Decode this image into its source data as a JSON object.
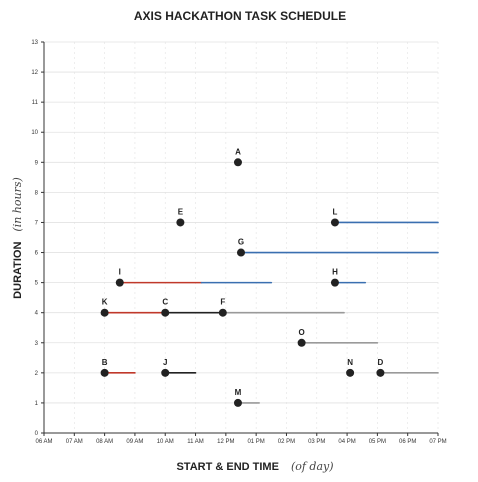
{
  "chart_data": {
    "type": "scatter",
    "title": "AXIS HACKATHON TASK SCHEDULE",
    "xlabel": "START & END TIME",
    "xlabel_note": "(of day)",
    "ylabel": "DURATION",
    "ylabel_note": "(in hours)",
    "x_ticks": [
      "06 AM",
      "07 AM",
      "08 AM",
      "09 AM",
      "10 AM",
      "11 AM",
      "12 PM",
      "01 PM",
      "02 PM",
      "03 PM",
      "04 PM",
      "05 PM",
      "06 PM",
      "07 PM"
    ],
    "y_ticks": [
      "0",
      "1",
      "2",
      "3",
      "4",
      "5",
      "6",
      "7",
      "8",
      "9",
      "10",
      "11",
      "12",
      "13"
    ],
    "xlim": [
      6,
      19
    ],
    "ylim": [
      0,
      13
    ],
    "grid": true,
    "colors": {
      "point": "#222222",
      "red_line": "#c0392b",
      "blue_line": "#3a6fb0",
      "black_line": "#222222",
      "gray_line": "#9a9a9a",
      "grid": "#e2e2e2"
    },
    "points": [
      {
        "label": "A",
        "x": 12.4,
        "y": 9
      },
      {
        "label": "B",
        "x": 8.0,
        "y": 2
      },
      {
        "label": "C",
        "x": 10.0,
        "y": 4
      },
      {
        "label": "D",
        "x": 17.1,
        "y": 2
      },
      {
        "label": "E",
        "x": 10.5,
        "y": 7
      },
      {
        "label": "F",
        "x": 11.9,
        "y": 4
      },
      {
        "label": "G",
        "x": 12.5,
        "y": 6
      },
      {
        "label": "H",
        "x": 15.6,
        "y": 5
      },
      {
        "label": "I",
        "x": 8.5,
        "y": 5
      },
      {
        "label": "J",
        "x": 10.0,
        "y": 2
      },
      {
        "label": "K",
        "x": 8.0,
        "y": 4
      },
      {
        "label": "L",
        "x": 15.6,
        "y": 7
      },
      {
        "label": "M",
        "x": 12.4,
        "y": 1
      },
      {
        "label": "N",
        "x": 16.1,
        "y": 2
      },
      {
        "label": "O",
        "x": 14.5,
        "y": 3
      }
    ],
    "lines": [
      {
        "from": "B",
        "x1": 8.0,
        "x2": 9.0,
        "y": 2,
        "color": "red_line"
      },
      {
        "from": "J",
        "x1": 10.0,
        "x2": 11.0,
        "y": 2,
        "color": "black_line"
      },
      {
        "from": "K",
        "x1": 8.0,
        "x2": 10.0,
        "y": 4,
        "color": "red_line"
      },
      {
        "from": "C",
        "x1": 10.0,
        "x2": 12.0,
        "y": 4,
        "color": "black_line"
      },
      {
        "from": "F",
        "x1": 11.9,
        "x2": 15.9,
        "y": 4,
        "color": "gray_line"
      },
      {
        "from": "I",
        "x1": 8.5,
        "x2": 11.2,
        "y": 5,
        "color": "red_line"
      },
      {
        "from": "I",
        "x1": 11.2,
        "x2": 13.5,
        "y": 5,
        "color": "blue_line"
      },
      {
        "from": "H",
        "x1": 15.6,
        "x2": 16.6,
        "y": 5,
        "color": "blue_line"
      },
      {
        "from": "G",
        "x1": 12.5,
        "x2": 19.0,
        "y": 6,
        "color": "blue_line"
      },
      {
        "from": "L",
        "x1": 15.6,
        "x2": 19.0,
        "y": 7,
        "color": "blue_line"
      },
      {
        "from": "O",
        "x1": 14.5,
        "x2": 17.0,
        "y": 3,
        "color": "gray_line"
      },
      {
        "from": "M",
        "x1": 12.4,
        "x2": 13.1,
        "y": 1,
        "color": "gray_line"
      },
      {
        "from": "D",
        "x1": 17.1,
        "x2": 19.0,
        "y": 2,
        "color": "gray_line"
      }
    ]
  }
}
